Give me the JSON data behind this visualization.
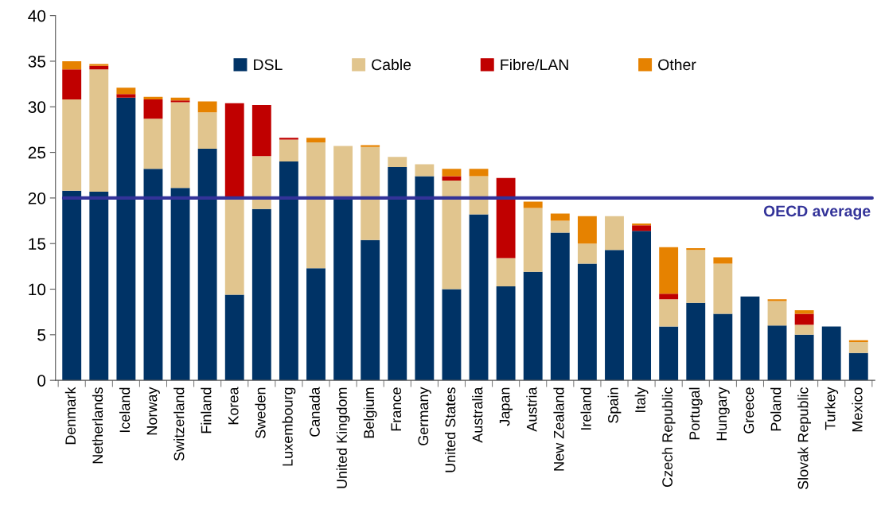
{
  "chart_data": {
    "type": "bar",
    "stacked": true,
    "categories": [
      "Denmark",
      "Netherlands",
      "Iceland",
      "Norway",
      "Switzerland",
      "Finland",
      "Korea",
      "Sweden",
      "Luxembourg",
      "Canada",
      "United Kingdom",
      "Belgium",
      "France",
      "Germany",
      "United States",
      "Australia",
      "Japan",
      "Austria",
      "New Zealand",
      "Ireland",
      "Spain",
      "Italy",
      "Czech Republic",
      "Portugal",
      "Hungary",
      "Greece",
      "Poland",
      "Slovak Republic",
      "Turkey",
      "Mexico"
    ],
    "series": [
      {
        "name": "DSL",
        "color": "#003366",
        "values": [
          20.8,
          20.7,
          31.0,
          23.2,
          21.1,
          25.4,
          9.4,
          18.8,
          24.0,
          12.3,
          19.9,
          15.4,
          23.4,
          22.4,
          10.0,
          18.2,
          10.3,
          11.9,
          16.2,
          12.8,
          14.3,
          16.4,
          5.9,
          8.5,
          7.3,
          9.2,
          6.0,
          5.0,
          5.9,
          3.0
        ]
      },
      {
        "name": "Cable",
        "color": "#e1c58e",
        "values": [
          10.0,
          13.4,
          0,
          5.5,
          9.4,
          4.0,
          10.5,
          5.8,
          2.4,
          13.8,
          5.8,
          10.2,
          1.1,
          1.3,
          11.9,
          4.2,
          3.1,
          7.0,
          1.3,
          2.2,
          3.7,
          0,
          3.0,
          5.8,
          5.5,
          0,
          2.7,
          1.1,
          0,
          1.2
        ]
      },
      {
        "name": "Fibre/LAN",
        "color": "#c00000",
        "values": [
          3.3,
          0.4,
          0.4,
          2.1,
          0.2,
          0,
          10.5,
          5.6,
          0.2,
          0,
          0,
          0,
          0,
          0,
          0.5,
          0,
          8.8,
          0,
          0,
          0,
          0,
          0.6,
          0.6,
          0,
          0,
          0,
          0,
          1.2,
          0,
          0
        ]
      },
      {
        "name": "Other",
        "color": "#e68200",
        "values": [
          0.9,
          0.2,
          0.7,
          0.3,
          0.3,
          1.2,
          0,
          0,
          0,
          0.5,
          0,
          0.2,
          0,
          0,
          0.8,
          0.8,
          0,
          0.7,
          0.8,
          3.0,
          0,
          0.2,
          5.1,
          0.2,
          0.7,
          0,
          0.2,
          0.4,
          0,
          0.2
        ]
      }
    ],
    "ylim": [
      0,
      40
    ],
    "yticks": [
      0,
      5,
      10,
      15,
      20,
      25,
      30,
      35,
      40
    ],
    "ref_lines": [
      {
        "axis": "y",
        "value": 20,
        "label": "OECD average",
        "color": "#333399"
      }
    ],
    "legend": "top",
    "grid": false
  }
}
